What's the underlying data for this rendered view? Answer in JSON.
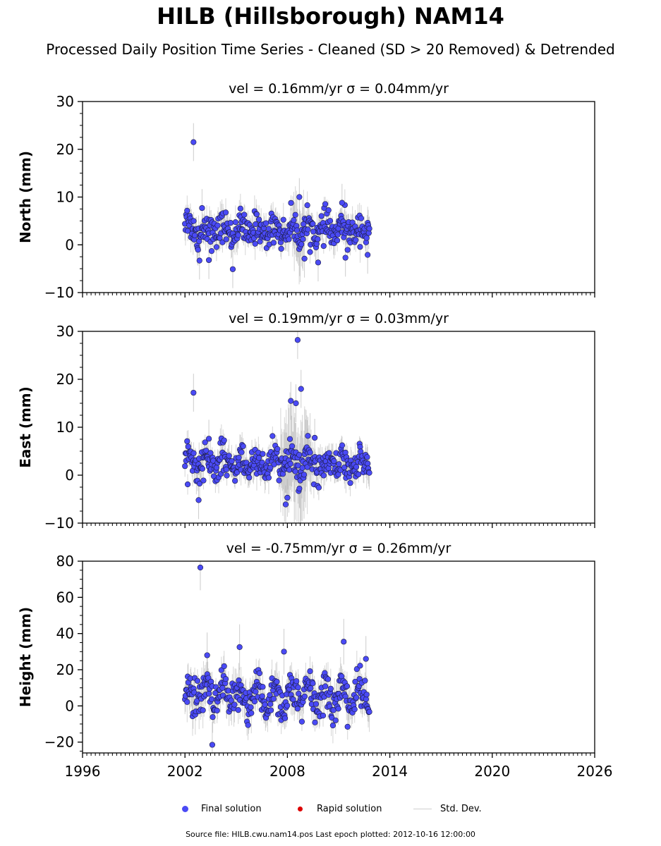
{
  "title": "HILB (Hillsborough) NAM14",
  "subtitle": "Processed Daily Position Time Series - Cleaned (SD > 20 Removed) & Detrended",
  "footer": "Source file: HILB.cwu.nam14.pos  Last epoch plotted: 2012-10-16 12:00:00",
  "legend": {
    "final": "Final solution",
    "rapid": "Rapid solution",
    "std": "Std. Dev."
  },
  "colors": {
    "final": "#4a4af5",
    "rapid": "#dd0000",
    "std": "#cfcfcf"
  },
  "chart_data": [
    {
      "type": "scatter",
      "title": "vel = 0.16mm/yr   σ = 0.04mm/yr",
      "ylabel": "North (mm)",
      "xlim": [
        1996,
        2026
      ],
      "ylim": [
        -10,
        30
      ],
      "yticks": [
        -10,
        0,
        10,
        20,
        30
      ],
      "xticks": [
        1996,
        2002,
        2008,
        2014,
        2020,
        2026
      ],
      "data_range": [
        2002.0,
        2012.8
      ],
      "baseline": 3,
      "outliers": [
        [
          2002.5,
          21.5
        ],
        [
          2002.85,
          -3.3
        ],
        [
          2003.0,
          7.7
        ],
        [
          2003.4,
          -3.2
        ],
        [
          2004.8,
          -5.1
        ],
        [
          2008.7,
          10.0
        ],
        [
          2009.0,
          -2.9
        ],
        [
          2009.8,
          -3.7
        ],
        [
          2011.2,
          8.8
        ],
        [
          2011.4,
          -2.7
        ],
        [
          2012.7,
          -2.1
        ]
      ]
    },
    {
      "type": "scatter",
      "title": "vel = 0.19mm/yr   σ = 0.03mm/yr",
      "ylabel": "East (mm)",
      "xlim": [
        1996,
        2026
      ],
      "ylim": [
        -10,
        30
      ],
      "yticks": [
        -10,
        0,
        10,
        20,
        30
      ],
      "xticks": [
        1996,
        2002,
        2008,
        2014,
        2020,
        2026
      ],
      "data_range": [
        2002.0,
        2012.8
      ],
      "baseline": 2.5,
      "outliers": [
        [
          2002.5,
          17.2
        ],
        [
          2002.8,
          -5.2
        ],
        [
          2003.4,
          7.6
        ],
        [
          2007.9,
          -6.1
        ],
        [
          2008.0,
          -4.7
        ],
        [
          2008.2,
          15.5
        ],
        [
          2008.5,
          15.0
        ],
        [
          2008.6,
          28.2
        ],
        [
          2008.8,
          18.0
        ],
        [
          2008.7,
          -2.8
        ],
        [
          2009.2,
          8.2
        ],
        [
          2009.6,
          7.8
        ]
      ]
    },
    {
      "type": "scatter",
      "title": "vel = -0.75mm/yr   σ = 0.26mm/yr",
      "ylabel": "Height (mm)",
      "xlim": [
        1996,
        2026
      ],
      "ylim": [
        -26,
        80
      ],
      "yticks": [
        -20,
        0,
        20,
        40,
        60,
        80
      ],
      "xticks": [
        1996,
        2002,
        2008,
        2014,
        2020,
        2026
      ],
      "data_range": [
        2002.0,
        2012.8
      ],
      "baseline": 5,
      "outliers": [
        [
          2002.9,
          76.5
        ],
        [
          2003.6,
          -21.5
        ],
        [
          2003.3,
          28.0
        ],
        [
          2005.2,
          32.5
        ],
        [
          2007.8,
          30.0
        ],
        [
          2011.3,
          35.5
        ],
        [
          2012.6,
          26.0
        ]
      ]
    }
  ]
}
